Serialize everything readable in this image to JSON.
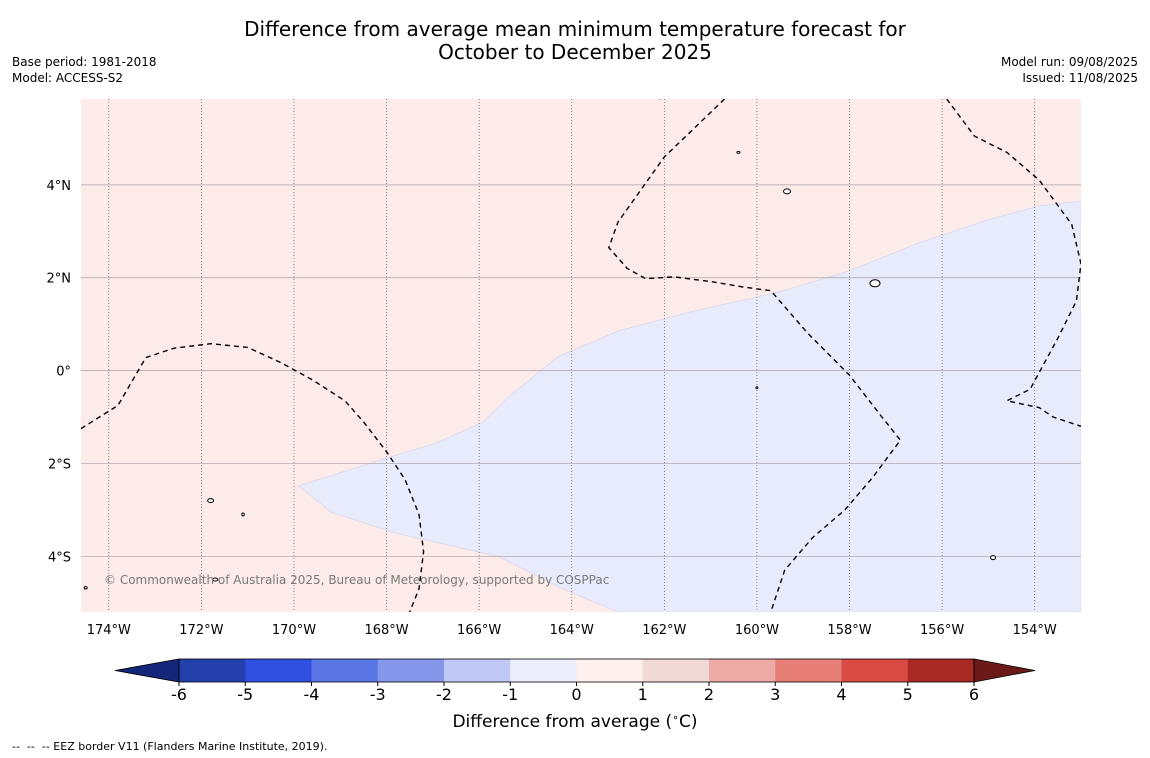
{
  "title": {
    "line1": "Difference from average mean minimum temperature forecast for",
    "line2": "October to December 2025"
  },
  "meta_left": {
    "base_period": "Base period: 1981-2018",
    "model": "Model: ACCESS-S2"
  },
  "meta_right": {
    "model_run": "Model run: 09/08/2025",
    "issued": "Issued: 11/08/2025"
  },
  "map": {
    "copyright": "© Commonwealth of Australia 2025, Bureau of Meteorology, supported by COSPPac",
    "extent": {
      "lon_min": -174.6,
      "lon_max": -153.0,
      "lat_min": -5.2,
      "lat_max": 5.85
    },
    "lat_ticks": [
      {
        "value": 4,
        "label": "4°N"
      },
      {
        "value": 2,
        "label": "2°N"
      },
      {
        "value": 0,
        "label": "0°"
      },
      {
        "value": -2,
        "label": "2°S"
      },
      {
        "value": -4,
        "label": "4°S"
      }
    ],
    "lon_ticks": [
      {
        "value": -174,
        "label": "174°W"
      },
      {
        "value": -172,
        "label": "172°W"
      },
      {
        "value": -170,
        "label": "170°W"
      },
      {
        "value": -168,
        "label": "168°W"
      },
      {
        "value": -166,
        "label": "166°W"
      },
      {
        "value": -164,
        "label": "164°W"
      },
      {
        "value": -162,
        "label": "162°W"
      },
      {
        "value": -160,
        "label": "160°W"
      },
      {
        "value": -158,
        "label": "158°W"
      },
      {
        "value": -156,
        "label": "156°W"
      },
      {
        "value": -154,
        "label": "154°W"
      }
    ],
    "fill_colors": {
      "warm_0_1": "#fcebe9",
      "cool_m1_0": "#e8ebfb"
    },
    "cool_region": [
      [
        -174.6,
        -2.48
      ],
      [
        -168.2,
        -2.0
      ],
      [
        -165.2,
        -1.1
      ],
      [
        -162.4,
        0.75
      ],
      [
        -160.1,
        1.5
      ],
      [
        -156.0,
        2.75
      ],
      [
        -153.0,
        3.65
      ],
      [
        -153.0,
        -5.2
      ],
      [
        -163.0,
        -5.2
      ],
      [
        -168.2,
        -3.6
      ],
      [
        -169.6,
        -3.05
      ]
    ],
    "cool_region_clipped": [
      [
        -169.9,
        -2.48
      ],
      [
        -168.2,
        -1.95
      ],
      [
        -166.9,
        -1.55
      ],
      [
        -165.9,
        -1.1
      ],
      [
        -165.4,
        -0.6
      ],
      [
        -164.3,
        0.3
      ],
      [
        -163.0,
        0.85
      ],
      [
        -161.5,
        1.25
      ],
      [
        -159.5,
        1.7
      ],
      [
        -158.0,
        2.15
      ],
      [
        -156.5,
        2.75
      ],
      [
        -155.0,
        3.25
      ],
      [
        -153.9,
        3.55
      ],
      [
        -153.0,
        3.65
      ],
      [
        -153.0,
        -5.2
      ],
      [
        -163.0,
        -5.2
      ],
      [
        -164.2,
        -4.7
      ],
      [
        -165.6,
        -4.0
      ],
      [
        -167.8,
        -3.5
      ],
      [
        -169.2,
        -3.05
      ]
    ],
    "eez_lines": [
      [
        [
          -174.6,
          -1.25
        ],
        [
          -173.8,
          -0.75
        ],
        [
          -173.2,
          0.28
        ],
        [
          -172.6,
          0.48
        ],
        [
          -171.8,
          0.58
        ],
        [
          -171.0,
          0.5
        ],
        [
          -170.3,
          0.18
        ],
        [
          -169.6,
          -0.2
        ],
        [
          -168.9,
          -0.65
        ],
        [
          -168.5,
          -1.1
        ],
        [
          -168.0,
          -1.75
        ],
        [
          -167.6,
          -2.35
        ],
        [
          -167.3,
          -3.1
        ],
        [
          -167.2,
          -3.9
        ],
        [
          -167.3,
          -4.7
        ],
        [
          -167.5,
          -5.2
        ]
      ],
      [
        [
          -160.7,
          5.85
        ],
        [
          -162.0,
          4.6
        ],
        [
          -163.0,
          3.2
        ],
        [
          -163.2,
          2.65
        ],
        [
          -162.8,
          2.2
        ],
        [
          -162.4,
          1.98
        ],
        [
          -161.8,
          2.02
        ],
        [
          -161.0,
          1.92
        ],
        [
          -160.3,
          1.8
        ],
        [
          -159.7,
          1.72
        ],
        [
          -158.9,
          0.8
        ],
        [
          -158.0,
          -0.1
        ],
        [
          -157.3,
          -1.0
        ],
        [
          -156.9,
          -1.5
        ],
        [
          -157.5,
          -2.3
        ],
        [
          -158.1,
          -3.0
        ],
        [
          -158.8,
          -3.6
        ],
        [
          -159.4,
          -4.3
        ],
        [
          -159.7,
          -5.2
        ]
      ],
      [
        [
          -155.9,
          5.85
        ],
        [
          -155.3,
          5.05
        ],
        [
          -154.6,
          4.7
        ],
        [
          -153.9,
          4.1
        ],
        [
          -153.2,
          3.15
        ],
        [
          -153.0,
          2.3
        ],
        [
          -153.1,
          1.5
        ],
        [
          -153.5,
          0.7
        ],
        [
          -154.1,
          -0.4
        ],
        [
          -154.6,
          -0.65
        ],
        [
          -153.9,
          -0.8
        ],
        [
          -153.6,
          -1.0
        ],
        [
          -153.0,
          -1.2
        ]
      ]
    ],
    "islands": [
      {
        "lon": -162.1,
        "lat": 5.88,
        "rx": 1.5,
        "ry": 1.2
      },
      {
        "lon": -160.4,
        "lat": 4.7,
        "rx": 1.5,
        "ry": 1.0
      },
      {
        "lon": -159.35,
        "lat": 3.86,
        "rx": 3.5,
        "ry": 2.5
      },
      {
        "lon": -157.45,
        "lat": 1.88,
        "rx": 5,
        "ry": 3.5
      },
      {
        "lon": -160.0,
        "lat": -0.37,
        "rx": 1.0,
        "ry": 1.0
      },
      {
        "lon": -171.8,
        "lat": -2.8,
        "rx": 3,
        "ry": 2
      },
      {
        "lon": -171.1,
        "lat": -3.1,
        "rx": 1.2,
        "ry": 1.5
      },
      {
        "lon": -171.7,
        "lat": -4.5,
        "rx": 2.5,
        "ry": 1.5
      },
      {
        "lon": -174.5,
        "lat": -4.68,
        "rx": 1.5,
        "ry": 1.2
      },
      {
        "lon": -154.9,
        "lat": -4.03,
        "rx": 2.5,
        "ry": 2
      }
    ]
  },
  "colorbar": {
    "ticks": [
      "-6",
      "-5",
      "-4",
      "-3",
      "-2",
      "-1",
      "0",
      "1",
      "2",
      "3",
      "4",
      "5",
      "6"
    ],
    "colors": [
      "#2440ad",
      "#2f50e0",
      "#5a75e4",
      "#8696ea",
      "#c1c8f5",
      "#eceefd",
      "#fdf0ed",
      "#f1d9d5",
      "#eeaba6",
      "#e77f77",
      "#d94a42",
      "#a92a24"
    ],
    "under_color": "#14267a",
    "over_color": "#6b1a17",
    "label": "Difference from average (",
    "label_unit": "C)",
    "label_degree": "∘"
  },
  "footnote": "--  --  -- EEZ border V11 (Flanders Marine Institute, 2019)."
}
